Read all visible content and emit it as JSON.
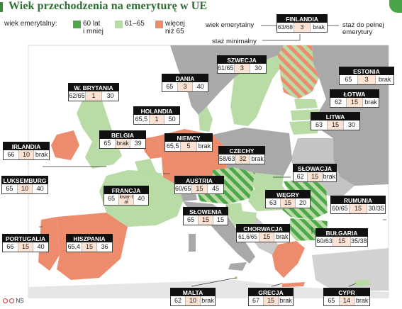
{
  "title": "Wiek przechodzenia na emeryturę w UE",
  "legend": {
    "heading": "wiek emerytalny:",
    "items": [
      {
        "label": "60 lat i mniej",
        "line1": "60 lat",
        "line2": "i mniej",
        "color": "#4ea84a"
      },
      {
        "label": "61–65",
        "line1": "61–65",
        "line2": "",
        "color": "#b9dba6"
      },
      {
        "label": "więcej niż 65",
        "line1": "więcej",
        "line2": "niż 65",
        "color": "#ec8c6c"
      }
    ]
  },
  "key": {
    "age_label": "wiek emerytalny",
    "contrib_label_1": "staż do pełnej",
    "contrib_label_2": "emerytury",
    "min_label": "staż minimalny"
  },
  "countries": [
    {
      "name": "FINLANDIA",
      "age": "63/68",
      "min": "3",
      "full": "brak"
    },
    {
      "name": "SZWECJA",
      "age": "61/65",
      "min": "3",
      "full": "30"
    },
    {
      "name": "ESTONIA",
      "age": "65",
      "min": "3",
      "full": "brak"
    },
    {
      "name": "ŁOTWA",
      "age": "62",
      "min": "15",
      "full": "brak"
    },
    {
      "name": "LITWA",
      "age": "63",
      "min": "15",
      "full": "30"
    },
    {
      "name": "DANIA",
      "age": "65",
      "min": "3",
      "full": "40"
    },
    {
      "name": "W. BRYTANIA",
      "age": "62/65",
      "min": "1",
      "full": "30"
    },
    {
      "name": "HOLANDIA",
      "age": "65,5",
      "min": "1",
      "full": "50"
    },
    {
      "name": "BELGIA",
      "age": "65",
      "min": "brak",
      "full": "39"
    },
    {
      "name": "NIEMCY",
      "age": "65,5",
      "min": "5",
      "full": "brak"
    },
    {
      "name": "IRLANDIA",
      "age": "66",
      "min": "10",
      "full": "brak"
    },
    {
      "name": "CZECHY",
      "age": "58/63",
      "min": "32",
      "full": "brak"
    },
    {
      "name": "SŁOWACJA",
      "age": "62",
      "min": "15",
      "full": "brak"
    },
    {
      "name": "LUKSEMBURG",
      "age": "65",
      "min": "10",
      "full": "40"
    },
    {
      "name": "AUSTRIA",
      "age": "60/65",
      "min": "15",
      "full": "45"
    },
    {
      "name": "WĘGRY",
      "age": "63",
      "min": "15",
      "full": "20"
    },
    {
      "name": "FRANCJA",
      "age": "65",
      "min": "kwar-tał",
      "full": "40"
    },
    {
      "name": "RUMUNIA",
      "age": "60/65",
      "min": "15",
      "full": "30/35"
    },
    {
      "name": "SŁOWENIA",
      "age": "65",
      "min": "15",
      "full": "15"
    },
    {
      "name": "PORTUGALIA",
      "age": "66",
      "min": "15",
      "full": "40"
    },
    {
      "name": "HISZPANIA",
      "age": "65,4",
      "min": "15",
      "full": "36"
    },
    {
      "name": "CHORWACJA",
      "age": "61,6/65",
      "min": "15",
      "full": "brak"
    },
    {
      "name": "BUŁGARIA",
      "age": "60/63",
      "min": "15",
      "full": "35/38"
    },
    {
      "name": "MALTA",
      "age": "62",
      "min": "10",
      "full": "brak"
    },
    {
      "name": "GRECJA",
      "age": "67",
      "min": "15",
      "full": "brak"
    },
    {
      "name": "CYPR",
      "age": "65",
      "min": "14",
      "full": "brak"
    }
  ],
  "credit": "NS",
  "colors": {
    "green_dark": "#4ea84a",
    "green_light": "#b9dba6",
    "salmon": "#ec8c6c",
    "gray_land": "#a9a9a9",
    "light_land": "#e6e6e6",
    "sea": "#ffffff"
  }
}
